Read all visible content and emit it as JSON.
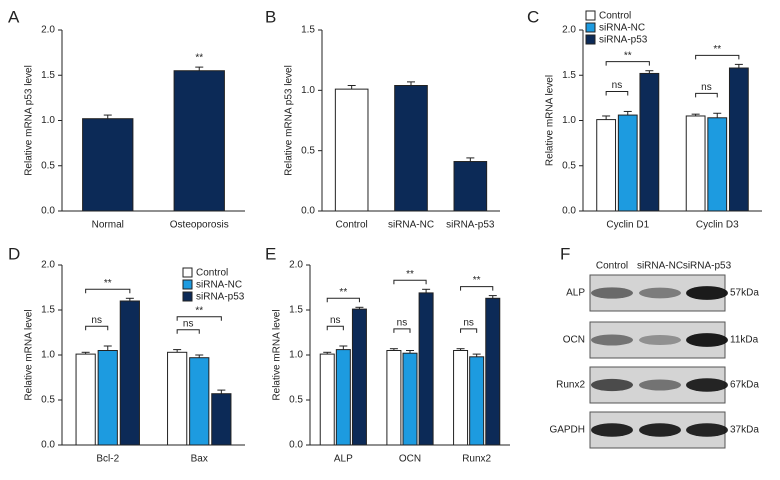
{
  "chart_data": [
    {
      "type": "bar",
      "panel": "A",
      "ylabel": "Relative mRNA p53 level",
      "categories": [
        "Normal",
        "Osteoporosis"
      ],
      "values": [
        1.02,
        1.55
      ],
      "errors": [
        0.04,
        0.04
      ],
      "colors": [
        "#0c2a57",
        "#0c2a57"
      ],
      "annotation": "**",
      "ylim": [
        0,
        2.0
      ],
      "yticks": [
        {
          "value": 0,
          "label": "0.0"
        },
        {
          "value": 0.5,
          "label": "0.5"
        },
        {
          "value": 1.0,
          "label": "1.0"
        },
        {
          "value": 1.5,
          "label": "1.5"
        },
        {
          "value": 2.0,
          "label": "2.0"
        }
      ]
    },
    {
      "type": "bar",
      "panel": "B",
      "ylabel": "Relative mRNA p53 level",
      "categories": [
        "Control",
        "siRNA-NC",
        "siRNA-p53"
      ],
      "values": [
        1.01,
        1.04,
        0.41
      ],
      "errors": [
        0.03,
        0.03,
        0.03
      ],
      "colors": [
        "#ffffff",
        "#0c2a57",
        "#0c2a57"
      ],
      "ylim": [
        0,
        1.5
      ],
      "yticks": [
        {
          "value": 0,
          "label": "0.0"
        },
        {
          "value": 0.5,
          "label": "0.5"
        },
        {
          "value": 1.0,
          "label": "1.0"
        },
        {
          "value": 1.5,
          "label": "1.5"
        }
      ]
    },
    {
      "type": "grouped_bar",
      "panel": "C",
      "ylabel": "Relative mRNA level",
      "legend": "top-left",
      "categories": [
        "Cyclin D1",
        "Cyclin D3"
      ],
      "series": [
        {
          "name": "Control",
          "color": "#ffffff",
          "values": [
            1.01,
            1.05
          ],
          "errors": [
            0.04,
            0.02
          ]
        },
        {
          "name": "siRNA-NC",
          "color": "#1d9be0",
          "values": [
            1.06,
            1.03
          ],
          "errors": [
            0.04,
            0.05
          ]
        },
        {
          "name": "siRNA-p53",
          "color": "#0c2a57",
          "values": [
            1.52,
            1.58
          ],
          "errors": [
            0.03,
            0.04
          ]
        }
      ],
      "brackets": [
        [
          "ns",
          "**"
        ],
        [
          "ns",
          "**"
        ]
      ],
      "ylim": [
        0,
        2.0
      ],
      "yticks": [
        {
          "value": 0,
          "label": "0.0"
        },
        {
          "value": 0.5,
          "label": "0.5"
        },
        {
          "value": 1.0,
          "label": "1.0"
        },
        {
          "value": 1.5,
          "label": "1.5"
        },
        {
          "value": 2.0,
          "label": "2.0"
        }
      ]
    },
    {
      "type": "grouped_bar",
      "panel": "D",
      "ylabel": "Relative mRNA level",
      "legend": "top-right",
      "categories": [
        "Bcl-2",
        "Bax"
      ],
      "series": [
        {
          "name": "Control",
          "color": "#ffffff",
          "values": [
            1.01,
            1.03
          ],
          "errors": [
            0.02,
            0.03
          ]
        },
        {
          "name": "siRNA-NC",
          "color": "#1d9be0",
          "values": [
            1.05,
            0.97
          ],
          "errors": [
            0.05,
            0.03
          ]
        },
        {
          "name": "siRNA-p53",
          "color": "#0c2a57",
          "values": [
            1.6,
            0.57
          ],
          "errors": [
            0.03,
            0.04
          ]
        }
      ],
      "brackets": [
        [
          "ns",
          "**"
        ],
        [
          "ns",
          "**"
        ]
      ],
      "ylim": [
        0,
        2.0
      ],
      "yticks": [
        {
          "value": 0,
          "label": "0.0"
        },
        {
          "value": 0.5,
          "label": "0.5"
        },
        {
          "value": 1.0,
          "label": "1.0"
        },
        {
          "value": 1.5,
          "label": "1.5"
        },
        {
          "value": 2.0,
          "label": "2.0"
        }
      ]
    },
    {
      "type": "grouped_bar",
      "panel": "E",
      "ylabel": "Relative mRNA level",
      "categories": [
        "ALP",
        "OCN",
        "Runx2"
      ],
      "series": [
        {
          "name": "Control",
          "color": "#ffffff",
          "values": [
            1.01,
            1.05,
            1.05
          ],
          "errors": [
            0.02,
            0.02,
            0.02
          ]
        },
        {
          "name": "siRNA-NC",
          "color": "#1d9be0",
          "values": [
            1.06,
            1.02,
            0.98
          ],
          "errors": [
            0.04,
            0.03,
            0.03
          ]
        },
        {
          "name": "siRNA-p53",
          "color": "#0c2a57",
          "values": [
            1.51,
            1.69,
            1.63
          ],
          "errors": [
            0.02,
            0.04,
            0.03
          ]
        }
      ],
      "brackets": [
        [
          "ns",
          "**"
        ],
        [
          "ns",
          "**"
        ],
        [
          "ns",
          "**"
        ]
      ],
      "ylim": [
        0,
        2.0
      ],
      "yticks": [
        {
          "value": 0,
          "label": "0.0"
        },
        {
          "value": 0.5,
          "label": "0.5"
        },
        {
          "value": 1.0,
          "label": "1.0"
        },
        {
          "value": 1.5,
          "label": "1.5"
        },
        {
          "value": 2.0,
          "label": "2.0"
        }
      ]
    },
    {
      "type": "blot",
      "panel": "F",
      "columns": [
        "Control",
        "siRNA-NC",
        "siRNA-p53"
      ],
      "rows": [
        {
          "name": "ALP",
          "size": "57kDa"
        },
        {
          "name": "OCN",
          "size": "11kDa"
        },
        {
          "name": "Runx2",
          "size": "67kDa"
        },
        {
          "name": "GAPDH",
          "size": "37kDa"
        }
      ]
    }
  ]
}
